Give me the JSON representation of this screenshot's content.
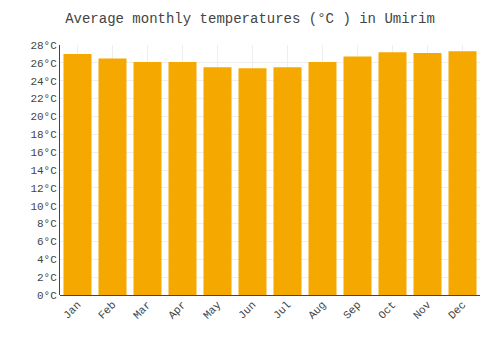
{
  "chart_data": {
    "type": "bar",
    "title": "Average monthly temperatures (°C ) in Umirim",
    "categories": [
      "Jan",
      "Feb",
      "Mar",
      "Apr",
      "May",
      "Jun",
      "Jul",
      "Aug",
      "Sep",
      "Oct",
      "Nov",
      "Dec"
    ],
    "values": [
      27.0,
      26.5,
      26.1,
      26.1,
      25.5,
      25.4,
      25.5,
      26.1,
      26.7,
      27.2,
      27.1,
      27.3
    ],
    "color": "#F5A800",
    "ylim": [
      0,
      28
    ],
    "yticks": [
      {
        "value": 0,
        "label": "0°C"
      },
      {
        "value": 2,
        "label": "2°C"
      },
      {
        "value": 4,
        "label": "4°C"
      },
      {
        "value": 6,
        "label": "6°C"
      },
      {
        "value": 8,
        "label": "8°C"
      },
      {
        "value": 10,
        "label": "10°C"
      },
      {
        "value": 12,
        "label": "12°C"
      },
      {
        "value": 14,
        "label": "14°C"
      },
      {
        "value": 16,
        "label": "16°C"
      },
      {
        "value": 18,
        "label": "18°C"
      },
      {
        "value": 20,
        "label": "20°C"
      },
      {
        "value": 22,
        "label": "22°C"
      },
      {
        "value": 24,
        "label": "24°C"
      },
      {
        "value": 26,
        "label": "26°C"
      },
      {
        "value": 28,
        "label": "28°C"
      }
    ],
    "grid": true
  }
}
